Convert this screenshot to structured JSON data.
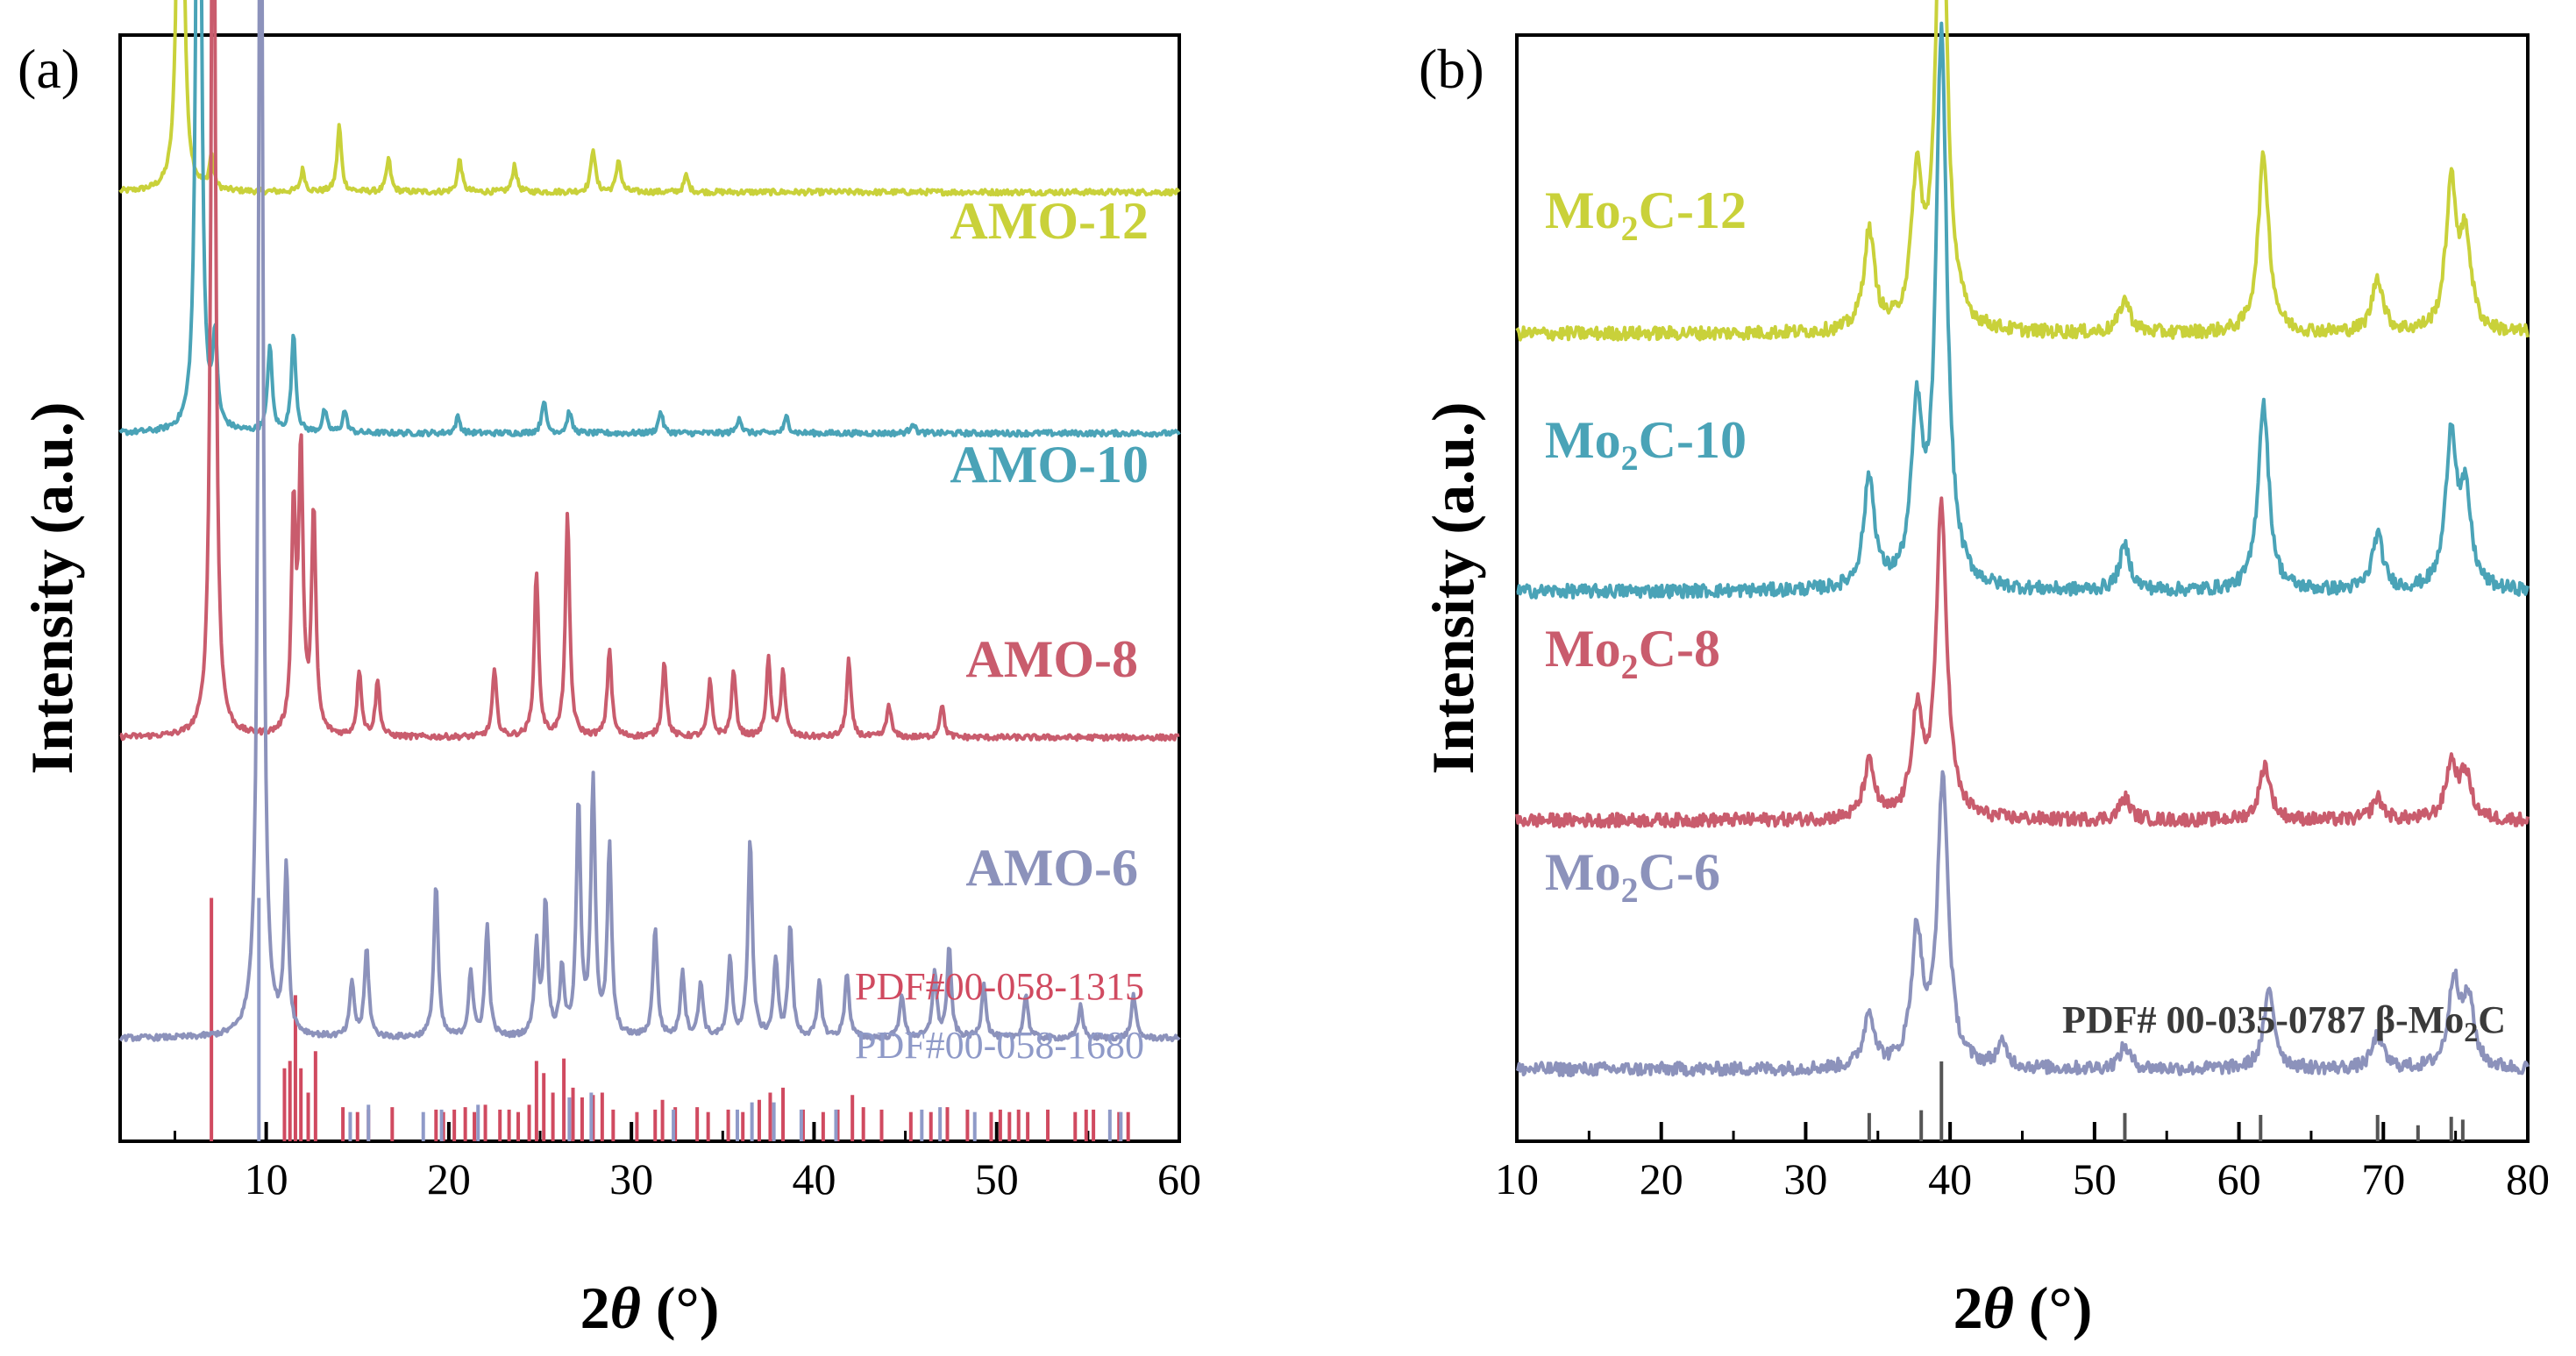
{
  "figure": {
    "panel_a_label": "(a)",
    "panel_b_label": "(b)"
  },
  "chart_data": [
    {
      "panel": "a",
      "type": "line",
      "xlabel_main": "2",
      "xlabel_theta": "θ",
      "xlabel_unit": " (°)",
      "ylabel": "Intensity (a.u.)",
      "xlim": [
        2,
        60
      ],
      "xticks": [
        10,
        20,
        30,
        40,
        50,
        60
      ],
      "xtick_labels": [
        "10",
        "20",
        "30",
        "40",
        "50",
        "60"
      ],
      "series": [
        {
          "name": "AMO-12",
          "color": "#c9d13a",
          "baseline": 0.858,
          "peaks": [
            [
              5.3,
              0.75
            ],
            [
              7.0,
              0.03
            ],
            [
              12.0,
              0.02
            ],
            [
              14.0,
              0.06
            ],
            [
              16.7,
              0.03
            ],
            [
              20.6,
              0.03
            ],
            [
              23.6,
              0.025
            ],
            [
              27.9,
              0.04
            ],
            [
              29.3,
              0.03
            ],
            [
              33.0,
              0.015
            ]
          ]
        },
        {
          "name": "AMO-10",
          "color": "#4aa3b7",
          "baseline": 0.64,
          "peaks": [
            [
              6.3,
              0.9
            ],
            [
              7.2,
              0.08
            ],
            [
              10.2,
              0.08
            ],
            [
              11.5,
              0.09
            ],
            [
              13.2,
              0.02
            ],
            [
              14.3,
              0.02
            ],
            [
              20.5,
              0.015
            ],
            [
              25.2,
              0.03
            ],
            [
              26.6,
              0.02
            ],
            [
              31.6,
              0.02
            ],
            [
              35.9,
              0.015
            ],
            [
              38.5,
              0.015
            ],
            [
              45.4,
              0.01
            ]
          ]
        },
        {
          "name": "AMO-8",
          "color": "#c95c6d",
          "baseline": 0.365,
          "peaks": [
            [
              7.1,
              0.95
            ],
            [
              11.5,
              0.2
            ],
            [
              11.9,
              0.25
            ],
            [
              12.6,
              0.2
            ],
            [
              15.1,
              0.06
            ],
            [
              16.1,
              0.05
            ],
            [
              22.5,
              0.06
            ],
            [
              24.8,
              0.15
            ],
            [
              26.5,
              0.2
            ],
            [
              28.8,
              0.08
            ],
            [
              31.8,
              0.07
            ],
            [
              34.3,
              0.05
            ],
            [
              35.6,
              0.06
            ],
            [
              37.5,
              0.07
            ],
            [
              38.3,
              0.06
            ],
            [
              41.9,
              0.07
            ],
            [
              44.1,
              0.03
            ],
            [
              47.0,
              0.03
            ]
          ]
        },
        {
          "name": "AMO-6",
          "color": "#8c92bb",
          "baseline": 0.093,
          "peaks": [
            [
              9.7,
              1.25
            ],
            [
              11.1,
              0.15
            ],
            [
              14.7,
              0.05
            ],
            [
              15.5,
              0.08
            ],
            [
              19.3,
              0.14
            ],
            [
              21.2,
              0.06
            ],
            [
              22.1,
              0.1
            ],
            [
              24.8,
              0.08
            ],
            [
              25.3,
              0.12
            ],
            [
              26.2,
              0.06
            ],
            [
              27.1,
              0.21
            ],
            [
              27.9,
              0.23
            ],
            [
              28.8,
              0.17
            ],
            [
              31.3,
              0.1
            ],
            [
              32.8,
              0.06
            ],
            [
              33.8,
              0.05
            ],
            [
              35.4,
              0.07
            ],
            [
              36.5,
              0.18
            ],
            [
              37.9,
              0.07
            ],
            [
              38.7,
              0.1
            ],
            [
              40.3,
              0.05
            ],
            [
              41.8,
              0.06
            ],
            [
              44.8,
              0.04
            ],
            [
              46.6,
              0.06
            ],
            [
              47.4,
              0.08
            ],
            [
              49.3,
              0.05
            ],
            [
              51.6,
              0.04
            ],
            [
              54.6,
              0.03
            ],
            [
              57.5,
              0.04
            ]
          ]
        }
      ],
      "references": [
        {
          "label": "PDF#00-058-1315",
          "color": "#d04a60",
          "sticks": [
            [
              7.0,
              1.0
            ],
            [
              11.0,
              0.3
            ],
            [
              11.3,
              0.33
            ],
            [
              11.6,
              0.6
            ],
            [
              11.9,
              0.3
            ],
            [
              12.3,
              0.2
            ],
            [
              12.7,
              0.37
            ],
            [
              14.2,
              0.14
            ],
            [
              15.0,
              0.12
            ],
            [
              15.6,
              0.13
            ],
            [
              16.9,
              0.14
            ],
            [
              19.3,
              0.13
            ],
            [
              19.7,
              0.12
            ],
            [
              20.3,
              0.13
            ],
            [
              20.9,
              0.14
            ],
            [
              21.4,
              0.12
            ],
            [
              22.0,
              0.15
            ],
            [
              22.8,
              0.13
            ],
            [
              23.3,
              0.13
            ],
            [
              23.8,
              0.12
            ],
            [
              24.4,
              0.15
            ],
            [
              24.8,
              0.33
            ],
            [
              25.2,
              0.28
            ],
            [
              25.7,
              0.2
            ],
            [
              26.3,
              0.34
            ],
            [
              26.8,
              0.22
            ],
            [
              27.3,
              0.18
            ],
            [
              27.9,
              0.19
            ],
            [
              28.4,
              0.2
            ],
            [
              29.0,
              0.13
            ],
            [
              30.3,
              0.12
            ],
            [
              31.3,
              0.13
            ],
            [
              31.7,
              0.17
            ],
            [
              32.4,
              0.14
            ],
            [
              33.6,
              0.14
            ],
            [
              34.2,
              0.12
            ],
            [
              35.3,
              0.13
            ],
            [
              36.1,
              0.12
            ],
            [
              37.0,
              0.17
            ],
            [
              37.6,
              0.2
            ],
            [
              38.3,
              0.22
            ],
            [
              39.4,
              0.13
            ],
            [
              40.5,
              0.12
            ],
            [
              41.3,
              0.13
            ],
            [
              42.1,
              0.19
            ],
            [
              42.7,
              0.14
            ],
            [
              43.7,
              0.13
            ],
            [
              45.3,
              0.12
            ],
            [
              46.4,
              0.12
            ],
            [
              47.3,
              0.14
            ],
            [
              48.4,
              0.13
            ],
            [
              49.7,
              0.12
            ],
            [
              50.2,
              0.13
            ],
            [
              50.7,
              0.12
            ],
            [
              51.2,
              0.13
            ],
            [
              51.7,
              0.12
            ],
            [
              52.8,
              0.13
            ],
            [
              54.3,
              0.12
            ],
            [
              54.9,
              0.13
            ],
            [
              55.3,
              0.13
            ],
            [
              56.7,
              0.12
            ],
            [
              57.2,
              0.12
            ]
          ]
        },
        {
          "label": "PDF#00-058-1680",
          "color": "#8f9ac8",
          "sticks": [
            [
              9.6,
              1.0
            ],
            [
              14.6,
              0.12
            ],
            [
              15.6,
              0.15
            ],
            [
              18.6,
              0.12
            ],
            [
              19.6,
              0.13
            ],
            [
              21.6,
              0.15
            ],
            [
              26.6,
              0.18
            ],
            [
              27.8,
              0.2
            ],
            [
              32.3,
              0.13
            ],
            [
              35.8,
              0.13
            ],
            [
              36.6,
              0.16
            ],
            [
              37.8,
              0.16
            ],
            [
              39.3,
              0.13
            ],
            [
              41.2,
              0.13
            ],
            [
              45.9,
              0.13
            ],
            [
              46.9,
              0.14
            ],
            [
              48.8,
              0.12
            ],
            [
              56.2,
              0.13
            ],
            [
              56.8,
              0.12
            ]
          ]
        }
      ]
    },
    {
      "panel": "b",
      "type": "line",
      "xlabel_main": "2",
      "xlabel_theta": "θ",
      "xlabel_unit": " (°)",
      "ylabel": "Intensity (a.u.)",
      "xlim": [
        10,
        80
      ],
      "xticks": [
        10,
        20,
        30,
        40,
        50,
        60,
        70,
        80
      ],
      "xtick_labels": [
        "10",
        "20",
        "30",
        "40",
        "50",
        "60",
        "70",
        "80"
      ],
      "series": [
        {
          "name_main": "Mo",
          "name_sub": "2",
          "name_rest": "C-12",
          "color": "#c9d13a",
          "baseline": 0.73,
          "peaks": [
            [
              34.4,
              0.09
            ],
            [
              37.7,
              0.13
            ],
            [
              39.4,
              0.45
            ],
            [
              52.1,
              0.03
            ],
            [
              61.7,
              0.16
            ],
            [
              69.6,
              0.05
            ],
            [
              74.7,
              0.13
            ],
            [
              75.7,
              0.08
            ]
          ]
        },
        {
          "name_main": "Mo",
          "name_sub": "2",
          "name_rest": "C-10",
          "color": "#4aa3b7",
          "baseline": 0.497,
          "peaks": [
            [
              34.4,
              0.1
            ],
            [
              37.7,
              0.15
            ],
            [
              39.4,
              0.5
            ],
            [
              52.1,
              0.04
            ],
            [
              61.7,
              0.17
            ],
            [
              69.6,
              0.05
            ],
            [
              74.7,
              0.14
            ],
            [
              75.7,
              0.08
            ]
          ]
        },
        {
          "name_main": "Mo",
          "name_sub": "2",
          "name_rest": "C-8",
          "color": "#c95c6d",
          "baseline": 0.29,
          "peaks": [
            [
              34.4,
              0.05
            ],
            [
              37.7,
              0.09
            ],
            [
              39.4,
              0.28
            ],
            [
              52.1,
              0.02
            ],
            [
              61.8,
              0.05
            ],
            [
              69.6,
              0.02
            ],
            [
              74.7,
              0.05
            ],
            [
              75.7,
              0.04
            ]
          ]
        },
        {
          "name_main": "Mo",
          "name_sub": "2",
          "name_rest": "C-6",
          "color": "#8c92bb",
          "baseline": 0.065,
          "peaks": [
            [
              34.4,
              0.05
            ],
            [
              37.7,
              0.12
            ],
            [
              39.5,
              0.26
            ],
            [
              43.6,
              0.02
            ],
            [
              52.1,
              0.02
            ],
            [
              62.1,
              0.07
            ],
            [
              69.6,
              0.03
            ],
            [
              74.9,
              0.08
            ],
            [
              75.9,
              0.06
            ]
          ]
        }
      ],
      "references": [
        {
          "label_main": "PDF# 00-035-0787 β-Mo",
          "label_sub": "2",
          "label_rest": "C",
          "color": "#555555",
          "sticks": [
            [
              34.4,
              0.3
            ],
            [
              38.0,
              0.33
            ],
            [
              39.4,
              0.85
            ],
            [
              52.1,
              0.3
            ],
            [
              61.5,
              0.28
            ],
            [
              69.6,
              0.28
            ],
            [
              72.4,
              0.17
            ],
            [
              74.7,
              0.26
            ],
            [
              75.5,
              0.23
            ]
          ]
        }
      ]
    }
  ]
}
